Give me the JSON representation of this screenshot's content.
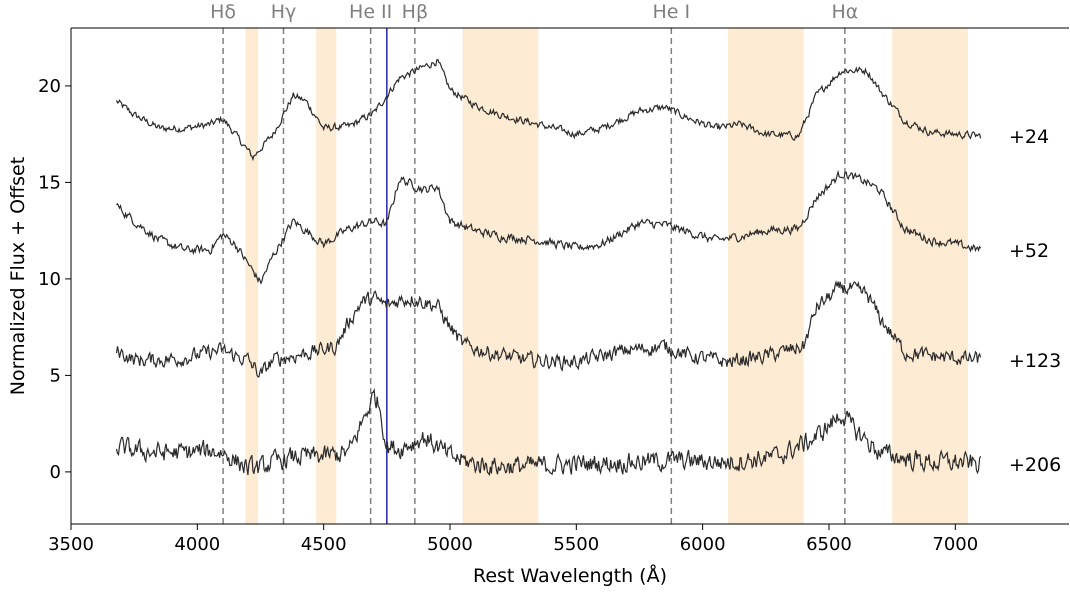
{
  "chart_data": {
    "type": "line",
    "title": "",
    "xlabel": "Rest Wavelength (Å)",
    "ylabel": "Normalized Flux + Offset",
    "xlim": [
      3500,
      7450
    ],
    "ylim": [
      -2.7,
      23
    ],
    "x_ticks": [
      3500,
      4000,
      4500,
      5000,
      5500,
      6000,
      6500,
      7000
    ],
    "y_ticks": [
      0,
      5,
      10,
      15,
      20
    ],
    "grid": false,
    "colors": {
      "spectrum": "#2b2b2b",
      "shade": "#fdebd3",
      "reference_line": "#808080",
      "marker_line": "#3333aa"
    },
    "shaded_regions": [
      [
        4190,
        4240
      ],
      [
        4470,
        4550
      ],
      [
        5050,
        5350
      ],
      [
        6100,
        6400
      ],
      [
        6750,
        7050
      ]
    ],
    "reference_lines": [
      {
        "label": "Hδ",
        "x": 4102
      },
      {
        "label": "Hγ",
        "x": 4341
      },
      {
        "label": "He II",
        "x": 4686
      },
      {
        "label": "Hβ",
        "x": 4861
      },
      {
        "label": "He I",
        "x": 5876
      },
      {
        "label": "Hα",
        "x": 6563
      }
    ],
    "marker_line": {
      "x": 4750
    },
    "series": [
      {
        "name": "+24",
        "x": [
          3680,
          3750,
          3850,
          3950,
          4050,
          4100,
          4150,
          4220,
          4300,
          4380,
          4430,
          4500,
          4600,
          4700,
          4750,
          4800,
          4900,
          4950,
          5000,
          5100,
          5200,
          5350,
          5500,
          5600,
          5750,
          5850,
          5950,
          6050,
          6150,
          6250,
          6380,
          6450,
          6550,
          6650,
          6700,
          6800,
          6900,
          7000,
          7100
        ],
        "y": [
          19.2,
          18.5,
          17.8,
          17.8,
          18.0,
          18.3,
          17.5,
          16.3,
          17.5,
          19.5,
          19.2,
          17.8,
          17.9,
          18.6,
          19.5,
          20.4,
          21.0,
          21.3,
          19.8,
          19.0,
          18.5,
          18.0,
          17.5,
          17.8,
          18.7,
          18.9,
          18.3,
          17.8,
          18.0,
          17.5,
          17.4,
          19.5,
          20.8,
          20.8,
          19.8,
          18.2,
          17.6,
          17.5,
          17.4
        ],
        "noise": 0.3
      },
      {
        "name": "+52",
        "x": [
          3680,
          3750,
          3850,
          3950,
          4050,
          4100,
          4150,
          4200,
          4250,
          4300,
          4380,
          4430,
          4500,
          4600,
          4700,
          4750,
          4800,
          4900,
          4950,
          5000,
          5100,
          5200,
          5350,
          5500,
          5600,
          5750,
          5850,
          5950,
          6050,
          6150,
          6250,
          6380,
          6450,
          6550,
          6650,
          6700,
          6800,
          6900,
          7000,
          7100
        ],
        "y": [
          13.8,
          13.0,
          12.0,
          11.5,
          11.5,
          12.3,
          11.8,
          10.8,
          9.8,
          11.2,
          13.0,
          12.5,
          11.8,
          12.6,
          13.0,
          12.8,
          15.2,
          14.6,
          14.8,
          13.0,
          12.5,
          12.2,
          12.0,
          11.6,
          11.8,
          12.9,
          12.8,
          12.4,
          12.0,
          12.2,
          12.5,
          12.6,
          14.2,
          15.5,
          15.0,
          14.6,
          12.6,
          12.0,
          11.8,
          11.5
        ],
        "noise": 0.35
      },
      {
        "name": "+123",
        "x": [
          3680,
          3750,
          3850,
          3950,
          4050,
          4100,
          4150,
          4200,
          4250,
          4300,
          4380,
          4450,
          4550,
          4600,
          4650,
          4700,
          4750,
          4800,
          4850,
          4900,
          4950,
          5000,
          5050,
          5150,
          5300,
          5500,
          5700,
          5850,
          5950,
          6100,
          6250,
          6400,
          6450,
          6550,
          6650,
          6700,
          6800,
          6900,
          7000,
          7100
        ],
        "y": [
          6.3,
          5.8,
          5.8,
          5.9,
          6.2,
          6.3,
          6.0,
          5.8,
          5.0,
          5.8,
          6.0,
          6.2,
          6.5,
          7.8,
          8.8,
          9.0,
          8.6,
          8.9,
          9.0,
          8.8,
          8.6,
          7.5,
          6.6,
          6.2,
          5.8,
          5.7,
          6.3,
          6.5,
          6.0,
          5.7,
          6.0,
          6.5,
          8.5,
          9.6,
          9.2,
          8.0,
          6.2,
          6.0,
          5.9,
          5.8
        ],
        "noise": 0.6
      },
      {
        "name": "+206",
        "x": [
          3680,
          3750,
          3850,
          3950,
          4050,
          4100,
          4150,
          4200,
          4250,
          4300,
          4400,
          4500,
          4600,
          4650,
          4700,
          4720,
          4750,
          4800,
          4850,
          4900,
          4950,
          5000,
          5100,
          5200,
          5300,
          5500,
          5700,
          5900,
          6100,
          6300,
          6450,
          6550,
          6600,
          6650,
          6700,
          6800,
          6900,
          7000,
          7100
        ],
        "y": [
          1.3,
          1.1,
          1.0,
          1.0,
          1.1,
          1.0,
          0.6,
          0.2,
          0.2,
          0.5,
          0.8,
          0.8,
          1.0,
          2.5,
          4.0,
          3.5,
          1.3,
          1.2,
          1.5,
          1.8,
          1.3,
          0.8,
          0.4,
          0.3,
          0.3,
          0.4,
          0.5,
          0.6,
          0.5,
          0.8,
          1.8,
          3.0,
          2.2,
          1.6,
          1.0,
          0.7,
          0.5,
          0.5,
          0.4
        ],
        "noise": 0.8
      }
    ]
  }
}
